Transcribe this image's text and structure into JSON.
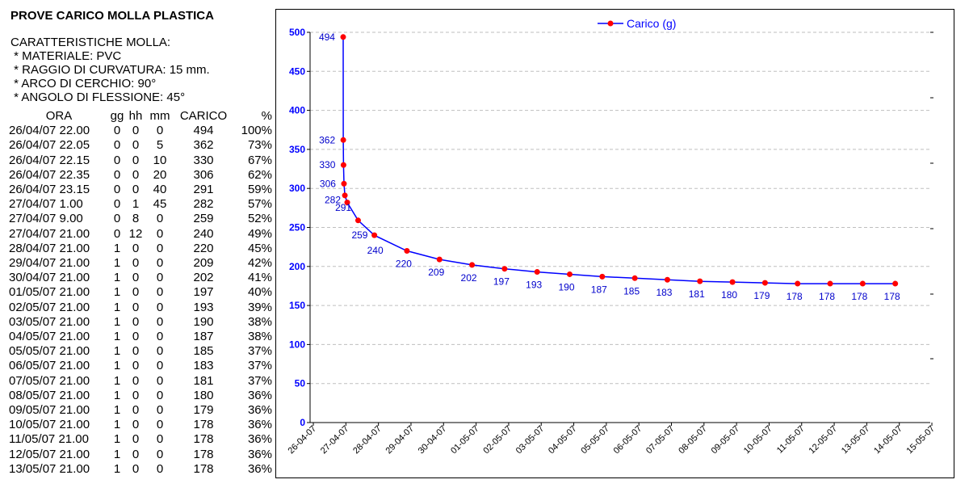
{
  "title": "PROVE CARICO MOLLA PLASTICA",
  "specs": {
    "heading": "CARATTERISTICHE MOLLA:",
    "lines": [
      " * MATERIALE: PVC",
      " * RAGGIO DI CURVATURA: 15 mm.",
      " * ARCO DI CERCHIO: 90°",
      " * ANGOLO DI FLESSIONE: 45°"
    ]
  },
  "table": {
    "headers": [
      "ORA",
      "gg",
      "hh",
      "mm",
      "CARICO",
      "%"
    ],
    "rows": [
      [
        "26/04/07 22.00",
        "0",
        "0",
        "0",
        "494",
        "100%"
      ],
      [
        "26/04/07 22.05",
        "0",
        "0",
        "5",
        "362",
        "73%"
      ],
      [
        "26/04/07 22.15",
        "0",
        "0",
        "10",
        "330",
        "67%"
      ],
      [
        "26/04/07 22.35",
        "0",
        "0",
        "20",
        "306",
        "62%"
      ],
      [
        "26/04/07 23.15",
        "0",
        "0",
        "40",
        "291",
        "59%"
      ],
      [
        "27/04/07 1.00",
        "0",
        "1",
        "45",
        "282",
        "57%"
      ],
      [
        "27/04/07 9.00",
        "0",
        "8",
        "0",
        "259",
        "52%"
      ],
      [
        "27/04/07 21.00",
        "0",
        "12",
        "0",
        "240",
        "49%"
      ],
      [
        "28/04/07 21.00",
        "1",
        "0",
        "0",
        "220",
        "45%"
      ],
      [
        "29/04/07 21.00",
        "1",
        "0",
        "0",
        "209",
        "42%"
      ],
      [
        "30/04/07 21.00",
        "1",
        "0",
        "0",
        "202",
        "41%"
      ],
      [
        "01/05/07 21.00",
        "1",
        "0",
        "0",
        "197",
        "40%"
      ],
      [
        "02/05/07 21.00",
        "1",
        "0",
        "0",
        "193",
        "39%"
      ],
      [
        "03/05/07 21.00",
        "1",
        "0",
        "0",
        "190",
        "38%"
      ],
      [
        "04/05/07 21.00",
        "1",
        "0",
        "0",
        "187",
        "38%"
      ],
      [
        "05/05/07 21.00",
        "1",
        "0",
        "0",
        "185",
        "37%"
      ],
      [
        "06/05/07 21.00",
        "1",
        "0",
        "0",
        "183",
        "37%"
      ],
      [
        "07/05/07 21.00",
        "1",
        "0",
        "0",
        "181",
        "37%"
      ],
      [
        "08/05/07 21.00",
        "1",
        "0",
        "0",
        "180",
        "36%"
      ],
      [
        "09/05/07 21.00",
        "1",
        "0",
        "0",
        "179",
        "36%"
      ],
      [
        "10/05/07 21.00",
        "1",
        "0",
        "0",
        "178",
        "36%"
      ],
      [
        "11/05/07 21.00",
        "1",
        "0",
        "0",
        "178",
        "36%"
      ],
      [
        "12/05/07 21.00",
        "1",
        "0",
        "0",
        "178",
        "36%"
      ],
      [
        "13/05/07 21.00",
        "1",
        "0",
        "0",
        "178",
        "36%"
      ]
    ]
  },
  "chart_data": {
    "type": "line",
    "title": "",
    "xlabel": "",
    "ylabel": "",
    "ylim": [
      0,
      500
    ],
    "yticks": [
      0,
      50,
      100,
      150,
      200,
      250,
      300,
      350,
      400,
      450,
      500
    ],
    "x_tick_labels": [
      "26-04-07",
      "27-04-07",
      "28-04-07",
      "29-04-07",
      "30-04-07",
      "01-05-07",
      "02-05-07",
      "03-05-07",
      "04-05-07",
      "05-05-07",
      "06-05-07",
      "07-05-07",
      "08-05-07",
      "09-05-07",
      "10-05-07",
      "11-05-07",
      "12-05-07",
      "13-05-07",
      "14-05-07",
      "15-05-07"
    ],
    "grid": "horizontal dashed",
    "legend_position": "top",
    "series": [
      {
        "name": "Carico (g)",
        "line_color": "#0000ff",
        "marker_color": "#ff0000",
        "x": [
          "26/04/07 22.00",
          "26/04/07 22.05",
          "26/04/07 22.15",
          "26/04/07 22.35",
          "26/04/07 23.15",
          "27/04/07 1.00",
          "27/04/07 9.00",
          "27/04/07 21.00",
          "28/04/07 21.00",
          "29/04/07 21.00",
          "30/04/07 21.00",
          "01/05/07 21.00",
          "02/05/07 21.00",
          "03/05/07 21.00",
          "04/05/07 21.00",
          "05/05/07 21.00",
          "06/05/07 21.00",
          "07/05/07 21.00",
          "08/05/07 21.00",
          "09/05/07 21.00",
          "10/05/07 21.00",
          "11/05/07 21.00",
          "12/05/07 21.00",
          "13/05/07 21.00"
        ],
        "values": [
          494,
          362,
          330,
          306,
          291,
          282,
          259,
          240,
          220,
          209,
          202,
          197,
          193,
          190,
          187,
          185,
          183,
          181,
          180,
          179,
          178,
          178,
          178,
          178
        ]
      }
    ]
  }
}
